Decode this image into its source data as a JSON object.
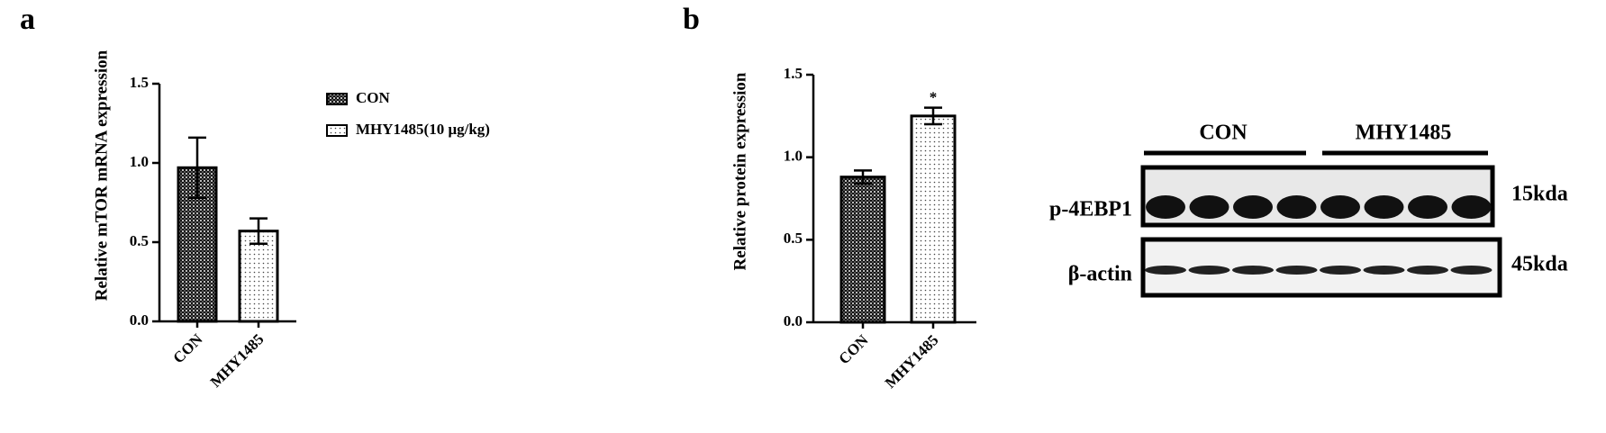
{
  "panels": [
    "a",
    "b"
  ],
  "chart_data": [
    {
      "type": "bar",
      "y_label": "Relative mTOR mRNA expression",
      "categories": [
        "CON",
        "MHY1485"
      ],
      "values": [
        0.97,
        0.57
      ],
      "errors": [
        0.19,
        0.08
      ],
      "fills": [
        "crosshatch",
        "dots"
      ],
      "legend": [
        "CON",
        "MHY1485(10 μg/kg)"
      ],
      "ylim": [
        0,
        1.5
      ],
      "yticks": [
        {
          "value": 0,
          "label": "0.0"
        },
        0.5,
        {
          "value": 1,
          "label": "1.0"
        },
        1.5
      ]
    },
    {
      "type": "bar",
      "y_label": "Relative protein expression",
      "categories": [
        "CON",
        "MHY1485"
      ],
      "values": [
        0.88,
        1.25
      ],
      "errors": [
        0.04,
        0.05
      ],
      "fills": [
        "crosshatch",
        "dots"
      ],
      "annotations": [
        {
          "category": "MHY1485",
          "text": "*"
        }
      ],
      "ylim": [
        0,
        1.5
      ],
      "yticks": [
        {
          "value": 0,
          "label": "0.0"
        },
        0.5,
        {
          "value": 1,
          "label": "1.0"
        },
        1.5
      ]
    }
  ],
  "blot": {
    "groups": [
      "CON",
      "MHY1485"
    ],
    "rows": [
      {
        "label": "p-4EBP1",
        "size": "15kda"
      },
      {
        "label": "β-actin",
        "size": "45kda"
      }
    ]
  }
}
